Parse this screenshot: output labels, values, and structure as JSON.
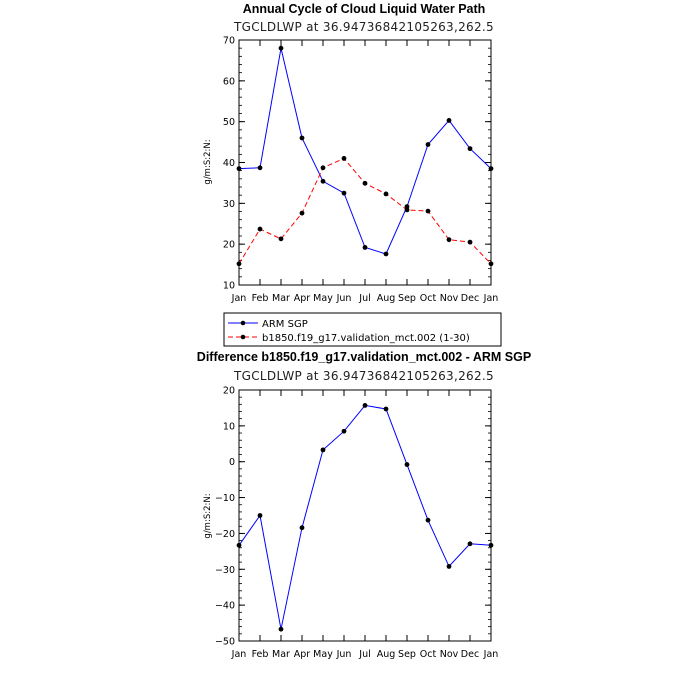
{
  "chart_data": [
    {
      "type": "line",
      "title": "Annual Cycle of Cloud Liquid Water Path",
      "subtitle": "TGCLDLWP at 36.94736842105263,262.5",
      "ylabel": "g/m:S:2:N:",
      "xlabel": "",
      "categories": [
        "Jan",
        "Feb",
        "Mar",
        "Apr",
        "May",
        "Jun",
        "Jul",
        "Aug",
        "Sep",
        "Oct",
        "Nov",
        "Dec",
        "Jan"
      ],
      "ylim": [
        10,
        70
      ],
      "yticks": [
        10,
        20,
        30,
        40,
        50,
        60,
        70
      ],
      "series": [
        {
          "name": "ARM SGP",
          "color": "#0000ff",
          "dash": "solid",
          "values": [
            38.5,
            38.7,
            68.0,
            46.0,
            35.4,
            32.5,
            19.2,
            17.6,
            29.2,
            44.4,
            50.3,
            43.4,
            38.5
          ]
        },
        {
          "name": "b1850.f19_g17.validation_mct.002 (1-30)",
          "color": "#ff0000",
          "dash": "dashed",
          "values": [
            15.2,
            23.7,
            21.3,
            27.6,
            38.7,
            41.0,
            34.9,
            32.3,
            28.4,
            28.1,
            21.1,
            20.5,
            15.2
          ]
        }
      ],
      "legend": "below"
    },
    {
      "type": "line",
      "title": "Difference b1850.f19_g17.validation_mct.002 - ARM SGP",
      "subtitle": "TGCLDLWP at 36.94736842105263,262.5",
      "ylabel": "g/m:S:2:N:",
      "xlabel": "",
      "categories": [
        "Jan",
        "Feb",
        "Mar",
        "Apr",
        "May",
        "Jun",
        "Jul",
        "Aug",
        "Sep",
        "Oct",
        "Nov",
        "Dec",
        "Jan"
      ],
      "ylim": [
        -50,
        20
      ],
      "yticks": [
        -50,
        -40,
        -30,
        -20,
        -10,
        0,
        10,
        20
      ],
      "series": [
        {
          "color": "#0000ff",
          "dash": "solid",
          "values": [
            -23.3,
            -15.0,
            -46.7,
            -18.4,
            3.3,
            8.5,
            15.7,
            14.7,
            -0.8,
            -16.3,
            -29.2,
            -22.9,
            -23.3
          ]
        }
      ]
    }
  ]
}
